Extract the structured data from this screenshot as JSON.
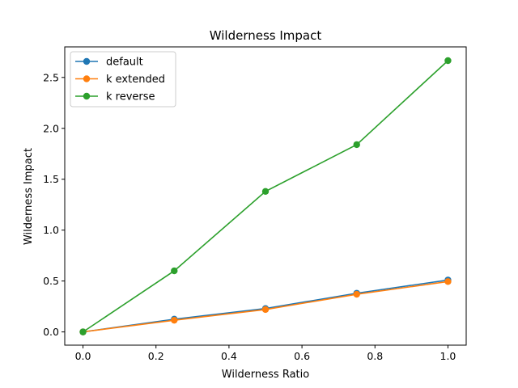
{
  "chart_data": {
    "type": "line",
    "title": "Wilderness Impact",
    "xlabel": "Wilderness Ratio",
    "ylabel": "Wilderness Impact",
    "xlim": [
      -0.05,
      1.05
    ],
    "ylim": [
      -0.13,
      2.8
    ],
    "xticks": [
      0.0,
      0.2,
      0.4,
      0.6,
      0.8,
      1.0
    ],
    "xtick_labels": [
      "0.0",
      "0.2",
      "0.4",
      "0.6",
      "0.8",
      "1.0"
    ],
    "yticks": [
      0.0,
      0.5,
      1.0,
      1.5,
      2.0,
      2.5
    ],
    "ytick_labels": [
      "0.0",
      "0.5",
      "1.0",
      "1.5",
      "2.0",
      "2.5"
    ],
    "grid": false,
    "legend_position": "top-left",
    "x": [
      0.0,
      0.25,
      0.5,
      0.75,
      1.0
    ],
    "series": [
      {
        "name": "default",
        "color": "#1f77b4",
        "values": [
          0.0,
          0.125,
          0.23,
          0.38,
          0.51
        ]
      },
      {
        "name": "k extended",
        "color": "#ff7f0e",
        "values": [
          0.0,
          0.115,
          0.22,
          0.37,
          0.495
        ]
      },
      {
        "name": "k reverse",
        "color": "#2ca02c",
        "values": [
          0.0,
          0.6,
          1.38,
          1.84,
          2.665
        ]
      }
    ]
  }
}
